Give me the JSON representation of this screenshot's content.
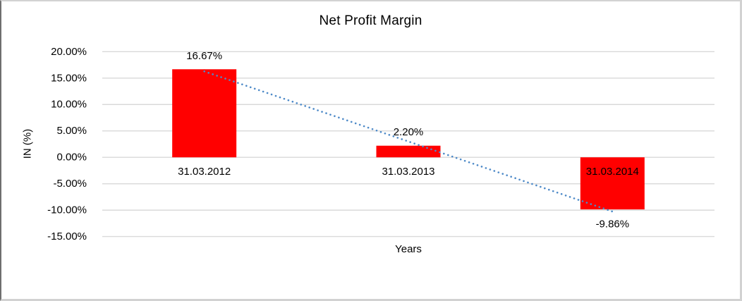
{
  "chart_data": {
    "type": "bar",
    "title": "Net Profit Margin",
    "xlabel": "Years",
    "ylabel": "IN (%)",
    "categories": [
      "31.03.2012",
      "31.03.2013",
      "31.03.2014"
    ],
    "values": [
      16.67,
      2.2,
      -9.86
    ],
    "data_labels": [
      "16.67%",
      "2.20%",
      "-9.86%"
    ],
    "y_ticks": [
      {
        "label": "20.00%",
        "value": 20
      },
      {
        "label": "15.00%",
        "value": 15
      },
      {
        "label": "10.00%",
        "value": 10
      },
      {
        "label": "5.00%",
        "value": 5
      },
      {
        "label": "0.00%",
        "value": 0
      },
      {
        "label": "-5.00%",
        "value": -5
      },
      {
        "label": "-10.00%",
        "value": -10
      },
      {
        "label": "-15.00%",
        "value": -15
      }
    ],
    "ylim": [
      -15,
      20
    ],
    "grid": true,
    "legend": "none",
    "trendline": {
      "type": "linear",
      "style": "dotted"
    },
    "colors": {
      "bar": "#FF0000",
      "trendline": "#4E8AC8",
      "gridline": "#D9D9D9",
      "text": "#000000"
    }
  }
}
